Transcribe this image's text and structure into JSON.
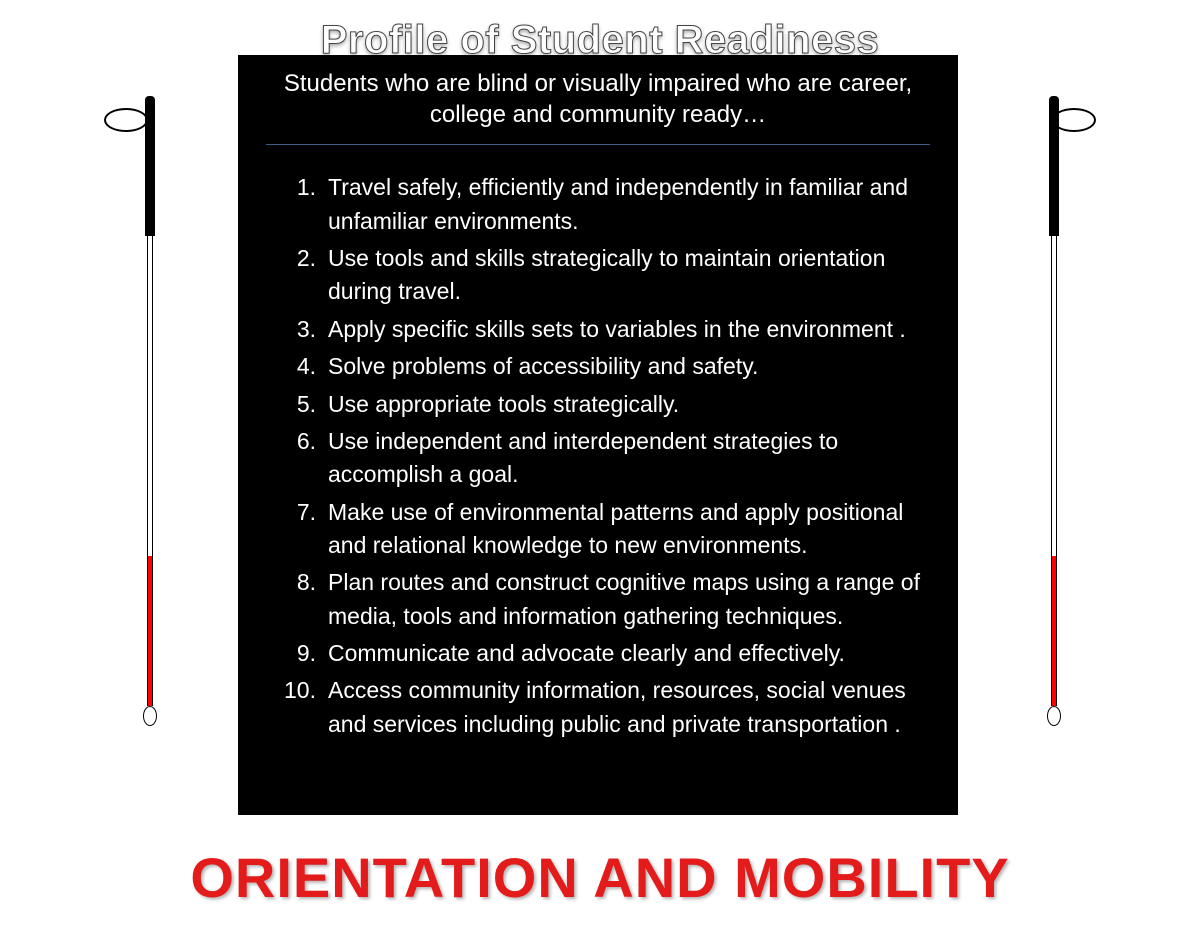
{
  "title": "Profile of Student Readiness",
  "intro": "Students who are blind or visually impaired  who are career, college and community ready…",
  "items": [
    "Travel safely, efficiently and independently in familiar and unfamiliar environments.",
    "Use tools and skills strategically to maintain orientation during travel.",
    "Apply specific skills sets to variables in the environment .",
    "Solve problems of accessibility and safety.",
    "Use appropriate tools strategically.",
    "Use independent and interdependent strategies to accomplish a goal.",
    "Make use of environmental patterns and apply positional and relational knowledge to new environments.",
    "Plan routes and construct cognitive maps using a range of media, tools and information gathering techniques.",
    "Communicate and advocate clearly and effectively.",
    "Access community information, resources, social venues and services including public and private transportation ."
  ],
  "footer": "ORIENTATION AND MOBILITY",
  "colors": {
    "box_bg": "#000000",
    "text": "#ffffff",
    "divider": "#3a5f8a",
    "footer_text": "#e31b1b",
    "cane_red": "#ff0000"
  }
}
